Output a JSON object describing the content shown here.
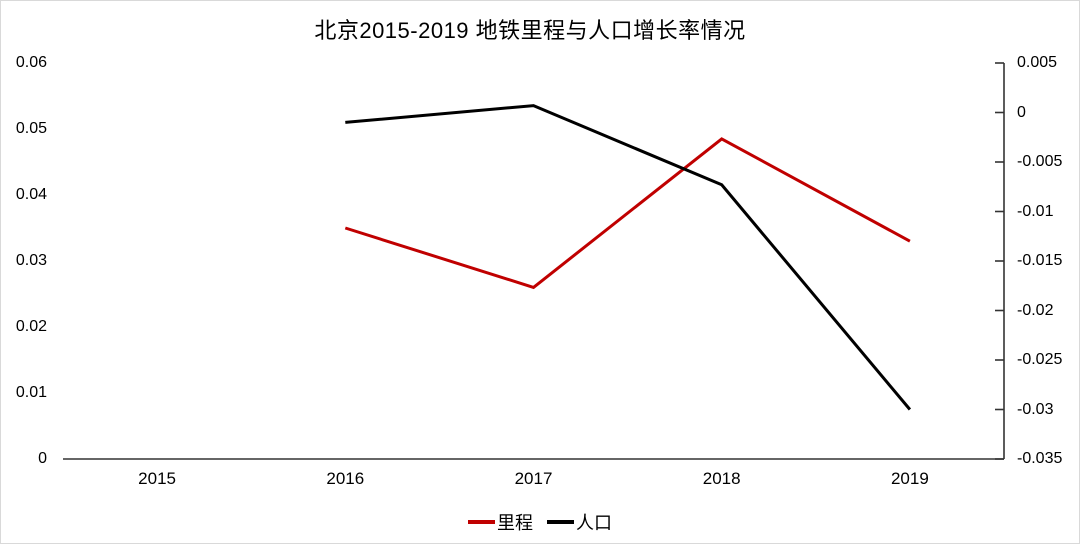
{
  "page": {
    "title": "北京2015-2019 地铁里程与人口增长率情况"
  },
  "legend": {
    "items": [
      {
        "label": "里程",
        "color": "#c00000"
      },
      {
        "label": "人口",
        "color": "#000000"
      }
    ]
  },
  "colors": {
    "axis": "#333333",
    "mileage_line": "#c00000",
    "population_line": "#000000",
    "frame_border": "#d9d9d9",
    "text": "#000000"
  },
  "chart_data": {
    "type": "line",
    "title": "北京2015-2019 地铁里程与人口增长率情况",
    "categories": [
      "2015",
      "2016",
      "2017",
      "2018",
      "2019"
    ],
    "series": [
      {
        "name": "里程",
        "axis": "left",
        "color": "#c00000",
        "values": [
          null,
          0.035,
          0.026,
          0.0485,
          0.033
        ]
      },
      {
        "name": "人口",
        "axis": "right",
        "color": "#000000",
        "values": [
          null,
          -0.001,
          0.0007,
          -0.0073,
          -0.03
        ]
      }
    ],
    "left_axis": {
      "min": 0,
      "max": 0.06,
      "tick_labels": [
        "0.06",
        "0.05",
        "0.04",
        "0.03",
        "0.02",
        "0.01",
        "0"
      ],
      "tick_values": [
        0.06,
        0.05,
        0.04,
        0.03,
        0.02,
        0.01,
        0
      ]
    },
    "right_axis": {
      "min": -0.035,
      "max": 0.005,
      "tick_labels": [
        "0.005",
        "0",
        "-0.005",
        "-0.01",
        "-0.015",
        "-0.02",
        "-0.025",
        "-0.03",
        "-0.035"
      ],
      "tick_values": [
        0.005,
        0,
        -0.005,
        -0.01,
        -0.015,
        -0.02,
        -0.025,
        -0.03,
        -0.035
      ]
    },
    "x_axis_line": true,
    "right_axis_line": true,
    "left_axis_line": false,
    "grid": false,
    "markers": false,
    "legend_position": "bottom"
  }
}
